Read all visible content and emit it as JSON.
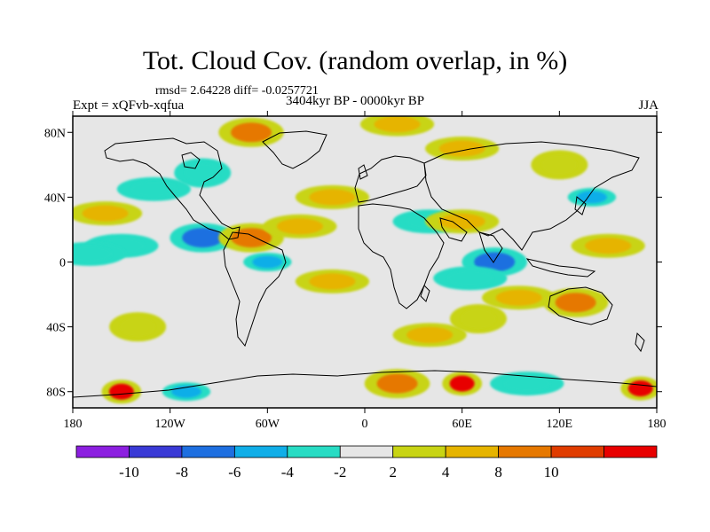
{
  "title": "Tot. Cloud Cov. (random overlap, in %)",
  "stats": "rmsd= 2.64228 diff= -0.0257721",
  "experiment": "Expt = xQFvb-xqfua",
  "period": "3404kyr BP - 0000kyr BP",
  "season": "JJA",
  "chart_data": {
    "type": "heatmap",
    "description_units": "percent cloud cover difference",
    "x_ticks": [
      "180",
      "120W",
      "60W",
      "0",
      "60E",
      "120E",
      "180"
    ],
    "x_tick_values": [
      -180,
      -120,
      -60,
      0,
      60,
      120,
      180
    ],
    "y_ticks": [
      "80N",
      "40N",
      "0",
      "40S",
      "80S"
    ],
    "y_tick_values": [
      80,
      40,
      0,
      -40,
      -80
    ],
    "xlim": [
      -180,
      180
    ],
    "ylim": [
      -90,
      90
    ],
    "colorbar": {
      "labels": [
        "-10",
        "-8",
        "-6",
        "-4",
        "-2",
        "2",
        "4",
        "8",
        "10"
      ],
      "colors": [
        "#8c1fe0",
        "#3a3ad6",
        "#1e6fe0",
        "#10aee8",
        "#28dcc4",
        "#e6e6e6",
        "#c8d414",
        "#e6b400",
        "#e67800",
        "#e03c00",
        "#e80000"
      ]
    },
    "anomalies": [
      {
        "lon": -150,
        "lat": 10,
        "level": -4
      },
      {
        "lon": -170,
        "lat": 5,
        "level": -4
      },
      {
        "lon": -100,
        "lat": 15,
        "level": -8
      },
      {
        "lon": -70,
        "lat": 15,
        "level": 8
      },
      {
        "lon": -60,
        "lat": 0,
        "level": -6
      },
      {
        "lon": -160,
        "lat": 30,
        "level": 4
      },
      {
        "lon": -40,
        "lat": 22,
        "level": 4
      },
      {
        "lon": -20,
        "lat": -12,
        "level": 4
      },
      {
        "lon": 40,
        "lat": 25,
        "level": -4
      },
      {
        "lon": 60,
        "lat": 25,
        "level": 4
      },
      {
        "lon": 80,
        "lat": 0,
        "level": -8
      },
      {
        "lon": 65,
        "lat": -10,
        "level": -4
      },
      {
        "lon": 95,
        "lat": -22,
        "level": 4
      },
      {
        "lon": 130,
        "lat": -25,
        "level": 8
      },
      {
        "lon": 150,
        "lat": 10,
        "level": 4
      },
      {
        "lon": 140,
        "lat": 40,
        "level": -6
      },
      {
        "lon": 120,
        "lat": 60,
        "level": 2
      },
      {
        "lon": 60,
        "lat": 70,
        "level": 4
      },
      {
        "lon": -100,
        "lat": 55,
        "level": -2
      },
      {
        "lon": -130,
        "lat": 45,
        "level": -4
      },
      {
        "lon": -20,
        "lat": 40,
        "level": 4
      },
      {
        "lon": -70,
        "lat": 80,
        "level": 8
      },
      {
        "lon": 20,
        "lat": 85,
        "level": 4
      },
      {
        "lon": -150,
        "lat": -80,
        "level": 10
      },
      {
        "lon": -110,
        "lat": -80,
        "level": -6
      },
      {
        "lon": 20,
        "lat": -75,
        "level": 8
      },
      {
        "lon": 60,
        "lat": -75,
        "level": 10
      },
      {
        "lon": 100,
        "lat": -75,
        "level": -4
      },
      {
        "lon": 170,
        "lat": -78,
        "level": 10
      },
      {
        "lon": 40,
        "lat": -45,
        "level": 4
      },
      {
        "lon": 70,
        "lat": -35,
        "level": 2
      },
      {
        "lon": -140,
        "lat": -40,
        "level": 2
      }
    ]
  }
}
